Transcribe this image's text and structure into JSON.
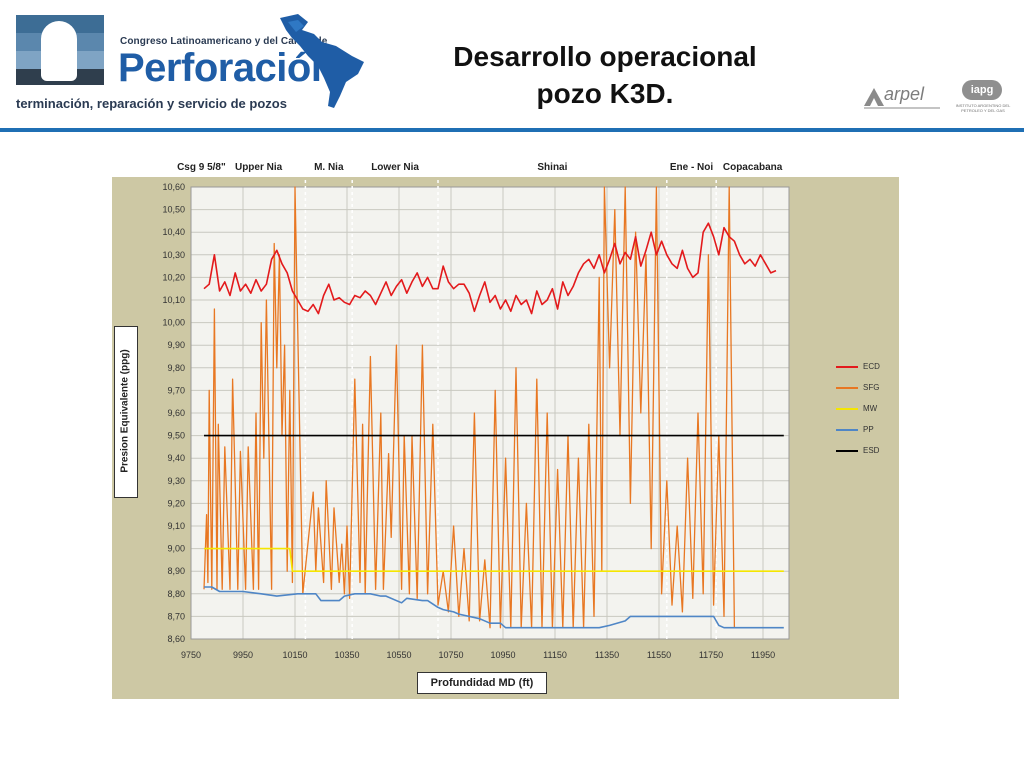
{
  "header": {
    "congreso_text": "Congreso Latinoamericano y del Caribe de",
    "perforacion_text": "Perforación",
    "tagline": "terminación, reparación y servicio de pozos",
    "title_line1": "Desarrollo operacional",
    "title_line2": "pozo K3D.",
    "arpel_text": "arpel",
    "iapg_text": "iapg",
    "iapg_sub": "INSTITUTO ARGENTINO DEL PETROLEO Y DEL GAS"
  },
  "colors": {
    "accent_rule": "#1f6fb4",
    "chart_panel": "#cdc8a4",
    "plot_background": "#f3f3ef",
    "ECD": "#e31a1c",
    "SFG": "#e87722",
    "MW": "#f5e600",
    "PP": "#4f86c6",
    "ESD": "#000000"
  },
  "chart_data": {
    "type": "line",
    "title": "",
    "xlabel": "Profundidad MD (ft)",
    "ylabel": "Presion Equivalente (ppg)",
    "xlim": [
      9750,
      12050
    ],
    "ylim": [
      8.6,
      10.6
    ],
    "x_ticks": [
      "9750",
      "9950",
      "10150",
      "10350",
      "10550",
      "10750",
      "10950",
      "11150",
      "11350",
      "11550",
      "11750",
      "11950"
    ],
    "y_ticks": [
      "10,60",
      "10,50",
      "10,40",
      "10,30",
      "10,20",
      "10,10",
      "10,00",
      "9,90",
      "9,80",
      "9,70",
      "9,60",
      "9,50",
      "9,40",
      "9,30",
      "9,20",
      "9,10",
      "9,00",
      "8,90",
      "8,80",
      "8,70",
      "8,60"
    ],
    "grid": true,
    "legend_position": "right",
    "formations": [
      {
        "name": "Csg 9 5/8\"",
        "from": 9750,
        "to": 9830
      },
      {
        "name": "Upper Nia",
        "from": 9830,
        "to": 10190
      },
      {
        "name": "M. Nia",
        "from": 10190,
        "to": 10370
      },
      {
        "name": "Lower Nia",
        "from": 10370,
        "to": 10700
      },
      {
        "name": "Shinai",
        "from": 10700,
        "to": 11580
      },
      {
        "name": "Ene - Noi",
        "from": 11580,
        "to": 11770
      },
      {
        "name": "Copacabana",
        "from": 11770,
        "to": 12050
      }
    ],
    "boundaries": [
      10190,
      10370,
      10700,
      11580,
      11770
    ],
    "series": [
      {
        "name": "ECD",
        "x": [
          9800,
          9820,
          9840,
          9860,
          9880,
          9900,
          9920,
          9940,
          9960,
          9980,
          10000,
          10020,
          10040,
          10060,
          10080,
          10100,
          10120,
          10140,
          10160,
          10180,
          10200,
          10220,
          10240,
          10260,
          10280,
          10300,
          10320,
          10340,
          10360,
          10380,
          10400,
          10420,
          10440,
          10460,
          10480,
          10500,
          10520,
          10540,
          10560,
          10580,
          10600,
          10620,
          10640,
          10660,
          10680,
          10700,
          10720,
          10740,
          10760,
          10780,
          10800,
          10820,
          10840,
          10860,
          10880,
          10900,
          10920,
          10940,
          10960,
          10980,
          11000,
          11020,
          11040,
          11060,
          11080,
          11100,
          11120,
          11140,
          11160,
          11180,
          11200,
          11220,
          11240,
          11260,
          11280,
          11300,
          11320,
          11340,
          11360,
          11380,
          11400,
          11420,
          11440,
          11460,
          11480,
          11500,
          11520,
          11540,
          11560,
          11580,
          11600,
          11620,
          11640,
          11660,
          11680,
          11700,
          11720,
          11740,
          11760,
          11780,
          11800,
          11820,
          11840,
          11860,
          11880,
          11900,
          11920,
          11940,
          11960,
          11980,
          12000
        ],
        "values": [
          10.15,
          10.17,
          10.3,
          10.14,
          10.18,
          10.12,
          10.22,
          10.14,
          10.17,
          10.13,
          10.19,
          10.14,
          10.17,
          10.28,
          10.32,
          10.26,
          10.22,
          10.14,
          10.1,
          10.06,
          10.05,
          10.08,
          10.04,
          10.12,
          10.17,
          10.1,
          10.11,
          10.09,
          10.08,
          10.12,
          10.11,
          10.14,
          10.12,
          10.08,
          10.13,
          10.18,
          10.12,
          10.16,
          10.19,
          10.13,
          10.18,
          10.22,
          10.16,
          10.2,
          10.15,
          10.15,
          10.25,
          10.18,
          10.15,
          10.17,
          10.17,
          10.13,
          10.05,
          10.12,
          10.18,
          10.09,
          10.12,
          10.06,
          10.1,
          10.05,
          10.12,
          10.08,
          10.1,
          10.04,
          10.14,
          10.08,
          10.1,
          10.15,
          10.06,
          10.18,
          10.12,
          10.16,
          10.22,
          10.26,
          10.28,
          10.24,
          10.3,
          10.22,
          10.28,
          10.35,
          10.26,
          10.31,
          10.28,
          10.38,
          10.25,
          10.32,
          10.4,
          10.3,
          10.36,
          10.3,
          10.26,
          10.24,
          10.32,
          10.24,
          10.2,
          10.22,
          10.4,
          10.44,
          10.38,
          10.3,
          10.42,
          10.38,
          10.36,
          10.3,
          10.26,
          10.28,
          10.25,
          10.3,
          10.26,
          10.22,
          10.23
        ]
      },
      {
        "name": "SFG",
        "x": [
          9800,
          9810,
          9815,
          9820,
          9830,
          9840,
          9850,
          9855,
          9870,
          9880,
          9900,
          9910,
          9930,
          9940,
          9960,
          9970,
          9990,
          10000,
          10010,
          10020,
          10030,
          10040,
          10060,
          10070,
          10080,
          10090,
          10100,
          10110,
          10120,
          10130,
          10140,
          10150,
          10180,
          10220,
          10230,
          10240,
          10260,
          10270,
          10290,
          10300,
          10320,
          10330,
          10340,
          10350,
          10360,
          10380,
          10400,
          10410,
          10420,
          10440,
          10460,
          10480,
          10490,
          10510,
          10520,
          10540,
          10560,
          10570,
          10590,
          10600,
          10620,
          10640,
          10660,
          10680,
          10700,
          10720,
          10740,
          10760,
          10780,
          10800,
          10820,
          10840,
          10860,
          10880,
          10900,
          10920,
          10940,
          10960,
          10980,
          11000,
          11020,
          11040,
          11060,
          11080,
          11100,
          11120,
          11140,
          11160,
          11180,
          11200,
          11220,
          11240,
          11260,
          11280,
          11300,
          11320,
          11330,
          11340,
          11360,
          11380,
          11400,
          11420,
          11440,
          11460,
          11480,
          11500,
          11520,
          11540,
          11560,
          11580,
          11600,
          11620,
          11640,
          11660,
          11680,
          11700,
          11720,
          11740,
          11760,
          11780,
          11800,
          11820,
          11840
        ],
        "values": [
          8.82,
          9.15,
          8.85,
          9.7,
          8.82,
          10.06,
          8.82,
          9.55,
          8.82,
          9.45,
          8.82,
          9.75,
          8.82,
          9.43,
          8.82,
          9.45,
          8.82,
          9.6,
          8.82,
          10.0,
          9.4,
          10.1,
          8.82,
          10.35,
          9.8,
          10.3,
          9.5,
          9.9,
          8.9,
          9.7,
          8.85,
          10.6,
          8.8,
          9.25,
          8.9,
          9.18,
          8.85,
          9.3,
          8.82,
          9.18,
          8.85,
          9.02,
          8.8,
          9.1,
          8.78,
          9.75,
          8.85,
          9.55,
          8.8,
          9.85,
          8.82,
          9.6,
          8.82,
          9.42,
          9.05,
          9.9,
          8.82,
          9.5,
          8.8,
          9.5,
          8.78,
          9.9,
          8.8,
          9.55,
          8.75,
          8.9,
          8.72,
          9.1,
          8.7,
          9.0,
          8.68,
          9.6,
          8.68,
          8.95,
          8.65,
          9.7,
          8.65,
          9.4,
          8.65,
          9.8,
          8.65,
          9.2,
          8.65,
          9.75,
          8.65,
          9.6,
          8.65,
          9.35,
          8.65,
          9.5,
          8.65,
          9.4,
          8.65,
          9.55,
          8.7,
          10.2,
          8.9,
          10.6,
          9.8,
          10.5,
          9.5,
          10.6,
          9.2,
          10.4,
          9.6,
          10.3,
          9.0,
          10.6,
          8.8,
          9.3,
          8.75,
          9.1,
          8.72,
          9.4,
          8.78,
          9.6,
          8.8,
          10.3,
          8.75,
          9.5,
          8.7,
          10.6,
          8.65
        ]
      },
      {
        "name": "MW",
        "x": [
          9800,
          10130,
          10140,
          12030
        ],
        "values": [
          9.0,
          9.0,
          8.9,
          8.9
        ]
      },
      {
        "name": "PP",
        "x": [
          9800,
          9830,
          9860,
          9950,
          10020,
          10080,
          10160,
          10230,
          10250,
          10320,
          10340,
          10380,
          10440,
          10480,
          10500,
          10560,
          10580,
          10640,
          10660,
          10700,
          10720,
          10760,
          10780,
          10860,
          10900,
          10940,
          10960,
          11200,
          11320,
          11360,
          11420,
          11440,
          11620,
          11680,
          11760,
          11780,
          11800,
          12030
        ],
        "values": [
          8.83,
          8.83,
          8.81,
          8.81,
          8.8,
          8.79,
          8.8,
          8.8,
          8.77,
          8.77,
          8.79,
          8.8,
          8.8,
          8.79,
          8.79,
          8.76,
          8.78,
          8.77,
          8.77,
          8.74,
          8.73,
          8.72,
          8.71,
          8.69,
          8.67,
          8.67,
          8.65,
          8.65,
          8.65,
          8.66,
          8.68,
          8.7,
          8.7,
          8.7,
          8.7,
          8.66,
          8.65,
          8.65
        ]
      },
      {
        "name": "ESD",
        "x": [
          9800,
          12030
        ],
        "values": [
          9.5,
          9.5
        ]
      }
    ]
  }
}
